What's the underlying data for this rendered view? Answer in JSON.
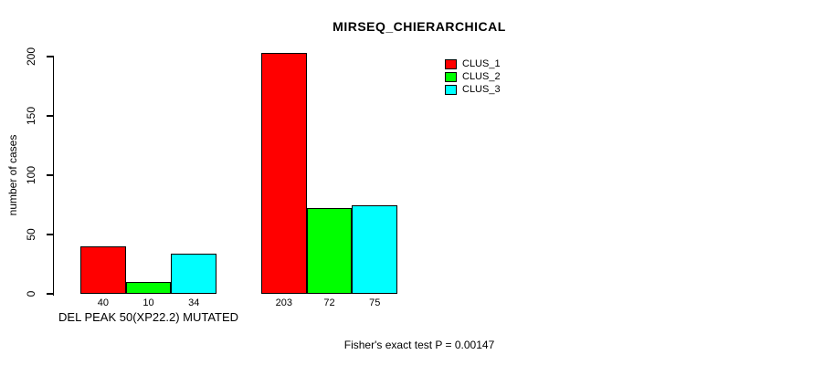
{
  "background_color": "#ffffff",
  "text_color": "#000000",
  "chart_data": {
    "type": "bar",
    "title": "MIRSEQ_CHIERARCHICAL",
    "xlabel": "",
    "ylabel": "number of cases",
    "categories": [
      "DEL PEAK 50(XP22.2) MUTATED",
      ""
    ],
    "series": [
      {
        "name": "CLUS_1",
        "color": "#ff0000",
        "values": [
          40,
          203
        ]
      },
      {
        "name": "CLUS_2",
        "color": "#00ff00",
        "values": [
          10,
          72
        ]
      },
      {
        "name": "CLUS_3",
        "color": "#00ffff",
        "values": [
          34,
          75
        ]
      }
    ],
    "bar_value_labels": [
      [
        "40",
        "10",
        "34"
      ],
      [
        "203",
        "72",
        "75"
      ]
    ],
    "yticks": [
      "0",
      "50",
      "100",
      "150",
      "200"
    ],
    "ytick_values": [
      0,
      50,
      100,
      150,
      200
    ],
    "ylim": [
      0,
      200
    ],
    "grid": "off",
    "bar_border_color": "#000000",
    "legend_position": "top-right",
    "legend_items": [
      "CLUS_1",
      "CLUS_2",
      "CLUS_3"
    ],
    "annotation": "Fisher's exact test P = 0.00147"
  }
}
